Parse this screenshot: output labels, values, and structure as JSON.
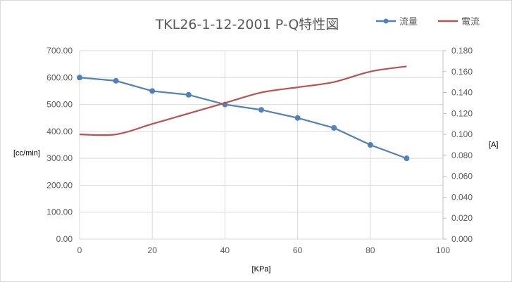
{
  "chart_data": {
    "type": "line",
    "title": "TKL26-1-12-2001 P-Q特性図",
    "xlabel": "[KPa]",
    "ylabel": "[cc/min]",
    "y2label": "[A]",
    "xlim": [
      0,
      100
    ],
    "ylim": [
      0,
      700
    ],
    "y2lim": [
      0,
      0.18
    ],
    "xticks": [
      "0",
      "20",
      "40",
      "60",
      "80",
      "100"
    ],
    "yticks": [
      "0.00",
      "100.00",
      "200.00",
      "300.00",
      "400.00",
      "500.00",
      "600.00",
      "700.00"
    ],
    "y2ticks": [
      "0.000",
      "0.020",
      "0.040",
      "0.060",
      "0.080",
      "0.100",
      "0.120",
      "0.140",
      "0.160",
      "0.180"
    ],
    "grid": true,
    "legend": "top-right",
    "x": [
      0,
      10,
      20,
      30,
      40,
      50,
      60,
      70,
      80,
      90
    ],
    "series": [
      {
        "name": "流量",
        "axis": "left",
        "color": "#4f81bd",
        "markers": true,
        "values": [
          600,
          588,
          550,
          536,
          500,
          480,
          450,
          413,
          350,
          300
        ]
      },
      {
        "name": "電流",
        "axis": "right",
        "color": "#c0504d",
        "markers": false,
        "smooth": true,
        "values": [
          0.1,
          0.1,
          0.11,
          0.12,
          0.13,
          0.14,
          0.145,
          0.15,
          0.16,
          0.165
        ]
      }
    ]
  }
}
